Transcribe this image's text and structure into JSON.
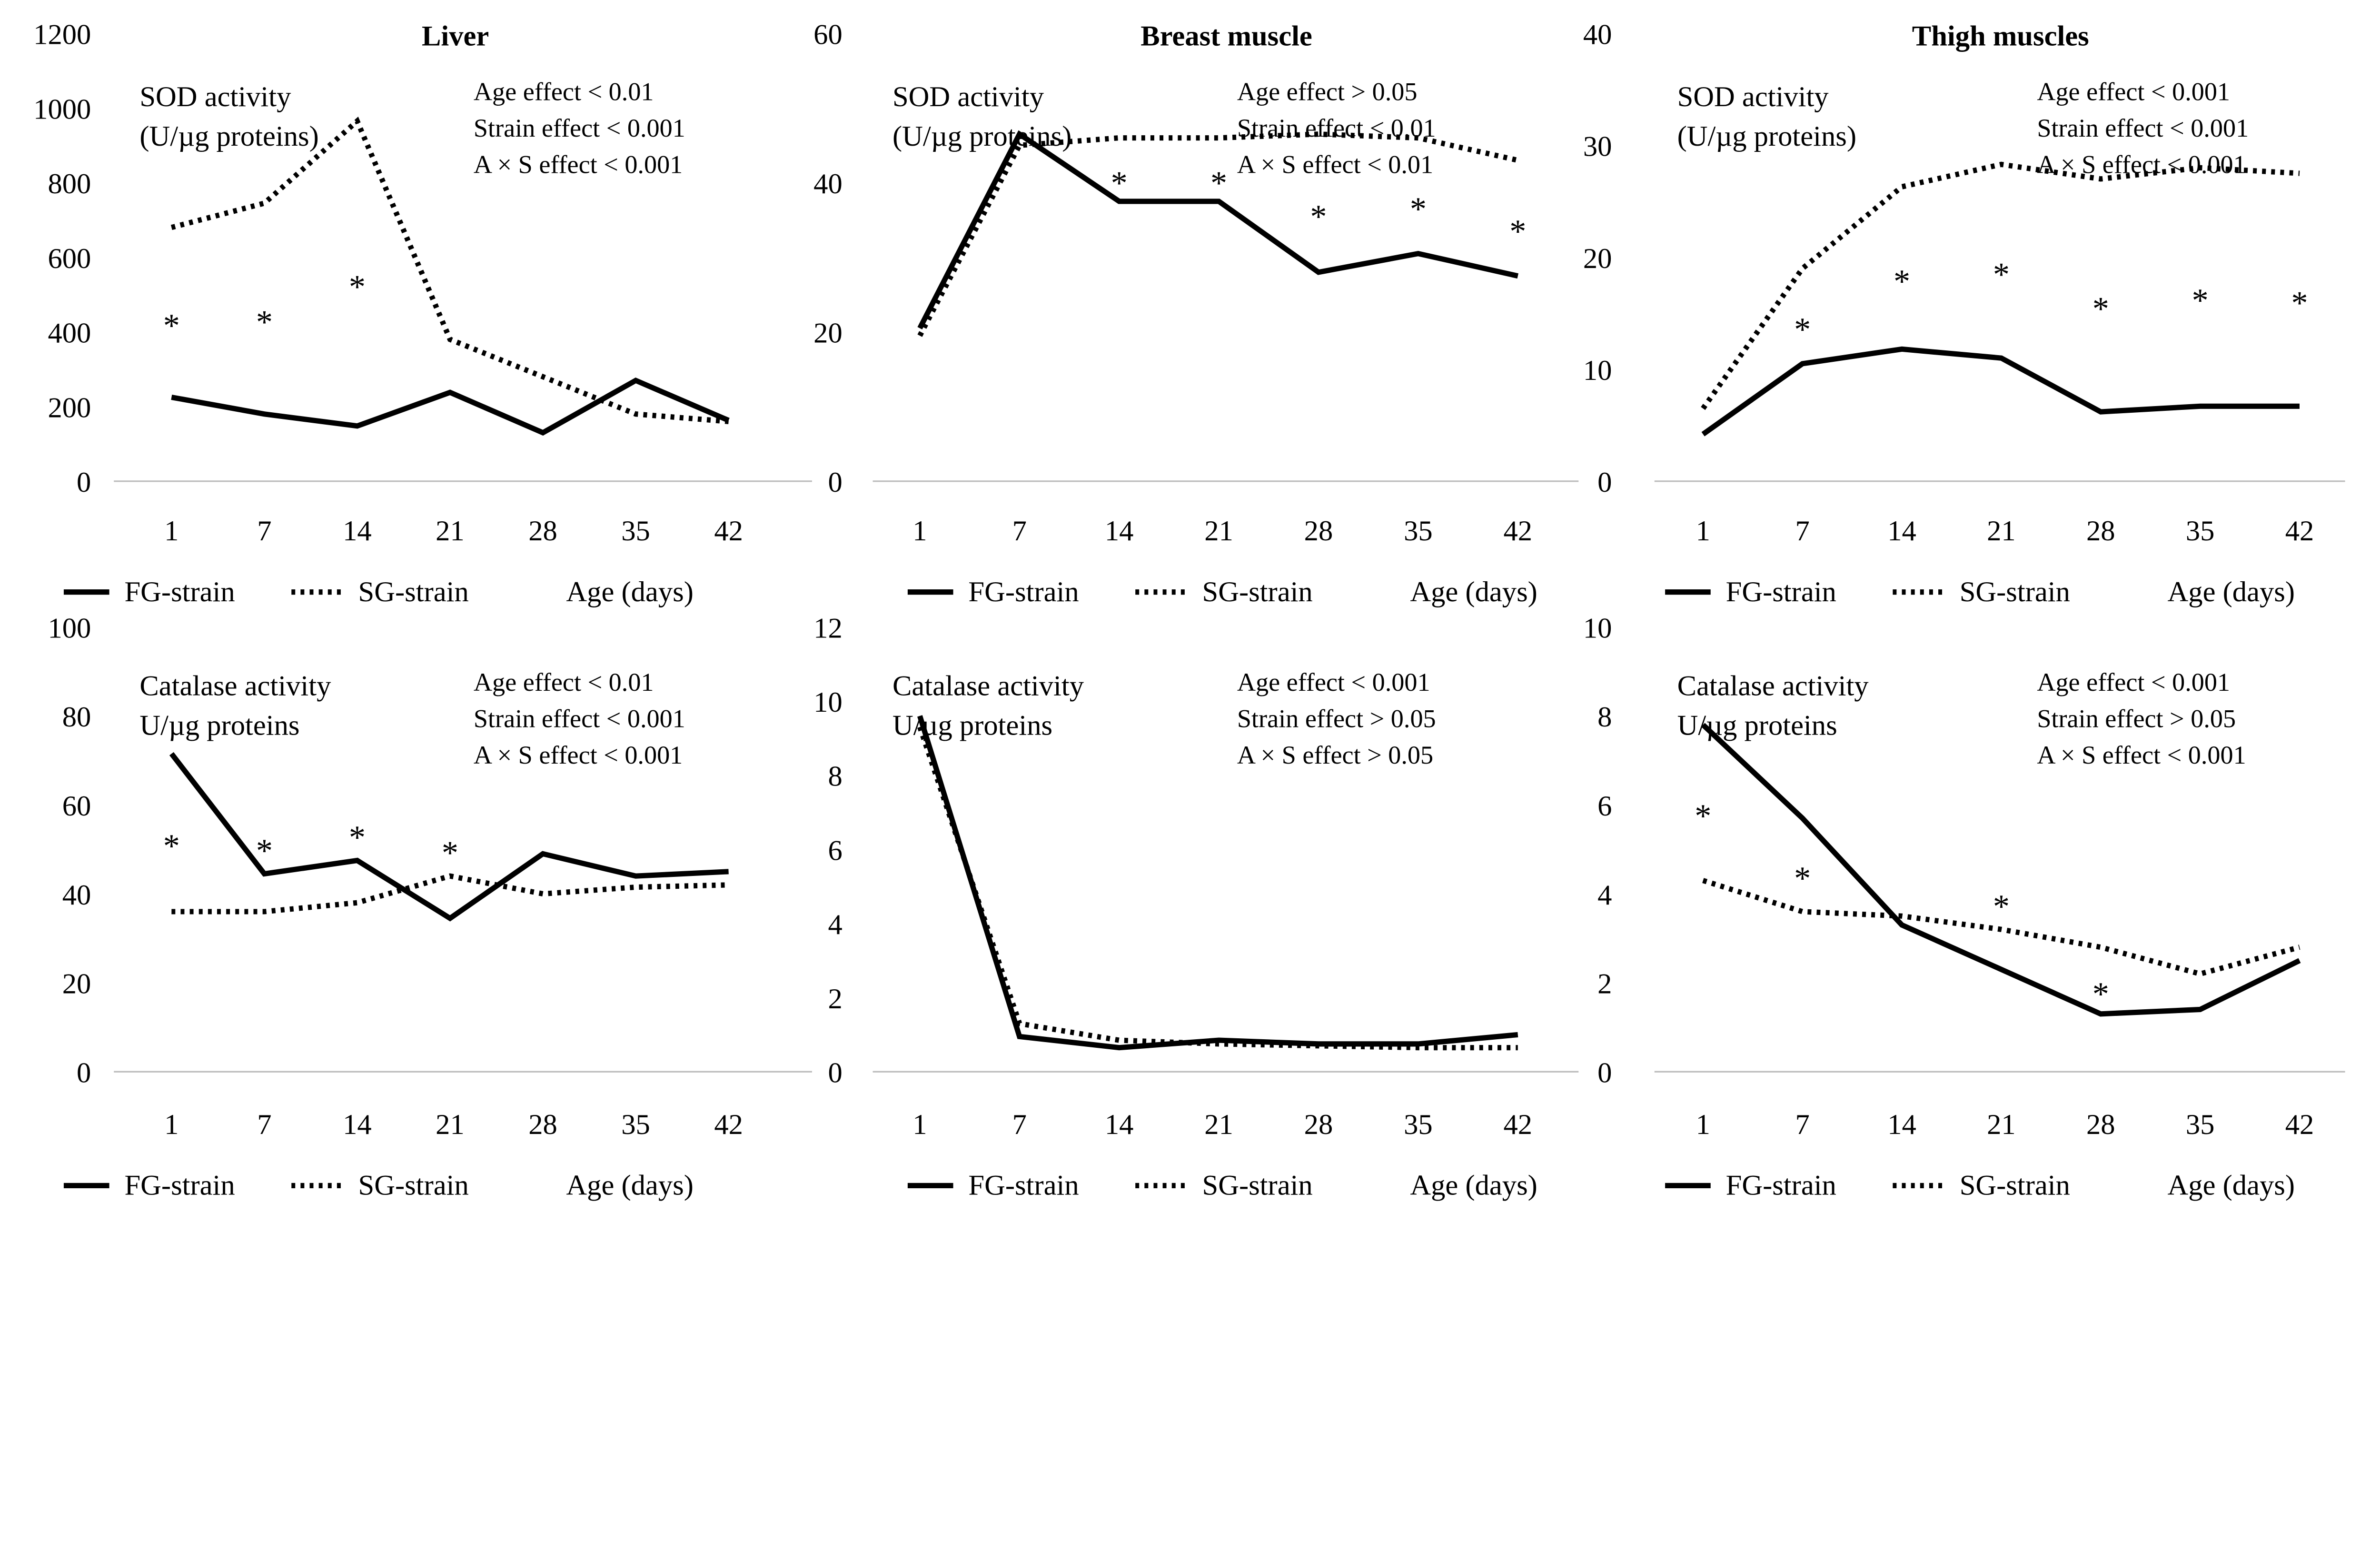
{
  "column_titles": [
    "Liver",
    "Breast muscle",
    "Thigh muscles"
  ],
  "legend": {
    "fg": "FG-strain",
    "sg": "SG-strain",
    "xlabel": "Age (days)"
  },
  "chart_data": [
    {
      "type": "line",
      "panel": "Liver SOD",
      "ylabel": [
        "SOD activity",
        "(U/µg proteins)"
      ],
      "stats": [
        "Age effect < 0.01",
        "Strain effect < 0.001",
        "A × S effect < 0.001"
      ],
      "categories": [
        "1",
        "7",
        "14",
        "21",
        "28",
        "35",
        "42"
      ],
      "ylim": [
        0,
        1200
      ],
      "yticks": [
        "0",
        "200",
        "400",
        "600",
        "800",
        "1000",
        "1200"
      ],
      "series": [
        {
          "name": "FG-strain",
          "style": "solid",
          "values": [
            225,
            180,
            148,
            238,
            130,
            270,
            163
          ]
        },
        {
          "name": "SG-strain",
          "style": "dotted",
          "values": [
            680,
            745,
            965,
            380,
            280,
            180,
            160
          ]
        }
      ],
      "significant": [
        "1",
        "7",
        "14"
      ]
    },
    {
      "type": "line",
      "panel": "Breast muscle SOD",
      "ylabel": [
        "SOD activity",
        "(U/µg proteins)"
      ],
      "stats": [
        "Age effect > 0.05",
        "Strain effect < 0.01",
        "A × S effect < 0.01"
      ],
      "categories": [
        "1",
        "7",
        "14",
        "21",
        "28",
        "35",
        "42"
      ],
      "ylim": [
        0,
        60
      ],
      "yticks": [
        "0",
        "20",
        "40",
        "60"
      ],
      "series": [
        {
          "name": "FG-strain",
          "style": "solid",
          "values": [
            20.5,
            46.5,
            37.5,
            37.5,
            28,
            30.5,
            27.5
          ]
        },
        {
          "name": "SG-strain",
          "style": "dotted",
          "values": [
            19.5,
            45,
            46,
            46,
            46.5,
            46,
            43
          ]
        }
      ],
      "significant": [
        "14",
        "21",
        "28",
        "35",
        "42"
      ]
    },
    {
      "type": "line",
      "panel": "Thigh muscles SOD",
      "ylabel": [
        "SOD activity",
        "(U/µg proteins)"
      ],
      "stats": [
        "Age effect < 0.001",
        "Strain effect < 0.001",
        "A × S effect < 0.001"
      ],
      "categories": [
        "1",
        "7",
        "14",
        "21",
        "28",
        "35",
        "42"
      ],
      "ylim": [
        0,
        40
      ],
      "yticks": [
        "0",
        "10",
        "20",
        "30",
        "40"
      ],
      "series": [
        {
          "name": "FG-strain",
          "style": "solid",
          "values": [
            4.2,
            10.5,
            11.8,
            11,
            6.2,
            6.7,
            6.7
          ]
        },
        {
          "name": "SG-strain",
          "style": "dotted",
          "values": [
            6.5,
            19,
            26.3,
            28.3,
            27,
            28,
            27.5
          ]
        }
      ],
      "significant": [
        "7",
        "14",
        "21",
        "28",
        "35",
        "42"
      ]
    },
    {
      "type": "line",
      "panel": "Liver Catalase",
      "ylabel": [
        "Catalase activity",
        "U/µg proteins"
      ],
      "stats": [
        "Age effect < 0.01",
        "Strain effect < 0.001",
        "A × S effect < 0.001"
      ],
      "categories": [
        "1",
        "7",
        "14",
        "21",
        "28",
        "35",
        "42"
      ],
      "ylim": [
        0,
        100
      ],
      "yticks": [
        "0",
        "20",
        "40",
        "60",
        "80",
        "100"
      ],
      "series": [
        {
          "name": "FG-strain",
          "style": "solid",
          "values": [
            71.5,
            44.5,
            47.5,
            34.5,
            49,
            44,
            45
          ]
        },
        {
          "name": "SG-strain",
          "style": "dotted",
          "values": [
            36,
            36,
            38,
            44,
            40,
            41.5,
            42
          ]
        }
      ],
      "significant": [
        "1",
        "7",
        "14",
        "21"
      ]
    },
    {
      "type": "line",
      "panel": "Breast muscle Catalase",
      "ylabel": [
        "Catalase activity",
        "U/µg proteins"
      ],
      "stats": [
        "Age effect < 0.001",
        "Strain effect > 0.05",
        "A × S effect > 0.05"
      ],
      "categories": [
        "1",
        "7",
        "14",
        "21",
        "28",
        "35",
        "42"
      ],
      "ylim": [
        0,
        12
      ],
      "yticks": [
        "0",
        "2",
        "4",
        "6",
        "8",
        "10",
        "12"
      ],
      "series": [
        {
          "name": "FG-strain",
          "style": "solid",
          "values": [
            9.6,
            0.95,
            0.65,
            0.85,
            0.75,
            0.75,
            1.0
          ]
        },
        {
          "name": "SG-strain",
          "style": "dotted",
          "values": [
            9.3,
            1.3,
            0.85,
            0.75,
            0.7,
            0.65,
            0.65
          ]
        }
      ],
      "significant": []
    },
    {
      "type": "line",
      "panel": "Thigh muscles Catalase",
      "ylabel": [
        "Catalase activity",
        "U/µg proteins"
      ],
      "stats": [
        "Age effect < 0.001",
        "Strain effect > 0.05",
        "A × S effect < 0.001"
      ],
      "categories": [
        "1",
        "7",
        "14",
        "21",
        "28",
        "35",
        "42"
      ],
      "ylim": [
        0,
        10
      ],
      "yticks": [
        "0",
        "2",
        "4",
        "6",
        "8",
        "10"
      ],
      "series": [
        {
          "name": "FG-strain",
          "style": "solid",
          "values": [
            7.8,
            5.7,
            3.3,
            2.3,
            1.3,
            1.4,
            2.5
          ]
        },
        {
          "name": "SG-strain",
          "style": "dotted",
          "values": [
            4.3,
            3.6,
            3.5,
            3.2,
            2.8,
            2.2,
            2.8
          ]
        }
      ],
      "significant": [
        "1",
        "7",
        "21",
        "28"
      ]
    }
  ]
}
